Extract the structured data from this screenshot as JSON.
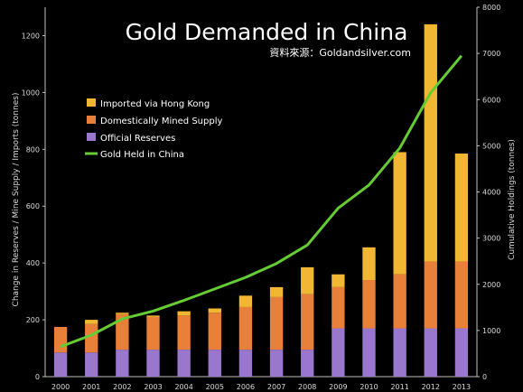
{
  "chart_data": {
    "type": "bar",
    "title": "Gold Demanded in China",
    "subtitle": "資料來源：Goldandsilver.com",
    "ylabel_left": "Change in Reserves / Mine Supply / Imports (tonnes)",
    "ylabel_right": "Cumulative Holdings (tonnes)",
    "ylim_left": [
      0,
      1300
    ],
    "ylim_right": [
      0,
      8000
    ],
    "yticks_left": [
      "0",
      "200",
      "400",
      "600",
      "800",
      "1000",
      "1200"
    ],
    "yticks_right": [
      "0",
      "1000",
      "2000",
      "3000",
      "4000",
      "5000",
      "6000",
      "7000",
      "8000"
    ],
    "categories": [
      "2000",
      "2001",
      "2002",
      "2003",
      "2004",
      "2005",
      "2006",
      "2007",
      "2008",
      "2009",
      "2010",
      "2011",
      "2012",
      "2013"
    ],
    "stacked": true,
    "legend_position": "upper-left",
    "series": [
      {
        "name": "Imported via Hong Kong",
        "axis": "left",
        "color": "#f2b732",
        "values": [
          0,
          15,
          5,
          5,
          15,
          15,
          40,
          35,
          95,
          45,
          115,
          430,
          835,
          380
        ]
      },
      {
        "name": "Domestically Mined Supply",
        "axis": "left",
        "color": "#e8803a",
        "values": [
          90,
          100,
          125,
          115,
          120,
          130,
          150,
          185,
          195,
          145,
          170,
          190,
          235,
          235
        ]
      },
      {
        "name": "Official Reserves",
        "axis": "left",
        "color": "#9977cc",
        "values": [
          85,
          85,
          95,
          95,
          95,
          95,
          95,
          95,
          95,
          170,
          170,
          170,
          170,
          170
        ]
      }
    ],
    "line": {
      "name": "Gold Held in China",
      "axis": "right",
      "color": "#66cc33",
      "values": [
        650,
        900,
        1250,
        1420,
        1650,
        1900,
        2150,
        2450,
        2850,
        3650,
        4150,
        4950,
        6150,
        6950
      ]
    }
  }
}
